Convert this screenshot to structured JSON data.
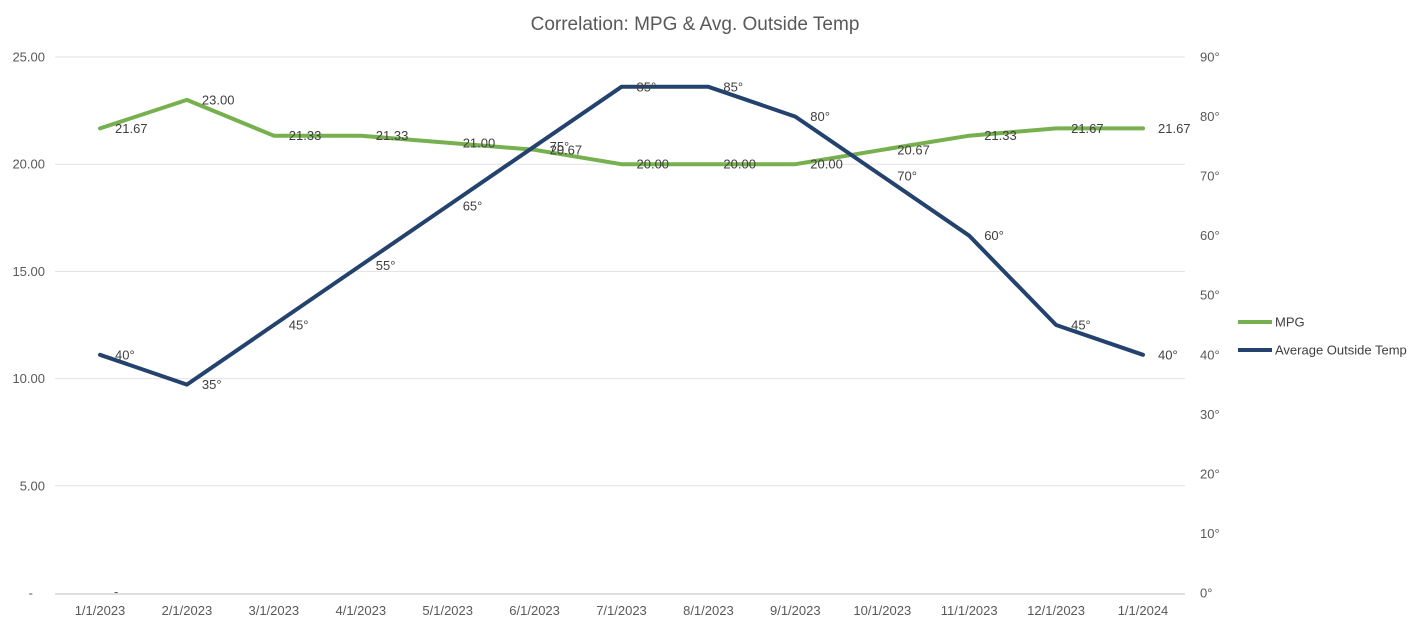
{
  "chart_data": {
    "type": "line",
    "title": "Correlation: MPG & Avg. Outside Temp",
    "x_categories": [
      "1/1/2023",
      "2/1/2023",
      "3/1/2023",
      "4/1/2023",
      "5/1/2023",
      "6/1/2023",
      "7/1/2023",
      "8/1/2023",
      "9/1/2023",
      "10/1/2023",
      "11/1/2023",
      "12/1/2023",
      "1/1/2024"
    ],
    "series": [
      {
        "name": "MPG",
        "axis": "left",
        "color": "#77B04F",
        "values": [
          21.67,
          23.0,
          21.33,
          21.33,
          21.0,
          20.67,
          20.0,
          20.0,
          20.0,
          20.67,
          21.33,
          21.67,
          21.67
        ],
        "point_labels": [
          "21.67",
          "23.00",
          "21.33",
          "21.33",
          "21.00",
          "20.67",
          "20.00",
          "20.00",
          "20.00",
          "20.67",
          "21.33",
          "21.67",
          "21.67"
        ]
      },
      {
        "name": "Average Outside Temp",
        "axis": "right",
        "color": "#24426E",
        "values": [
          40,
          35,
          45,
          55,
          65,
          75,
          85,
          85,
          80,
          70,
          60,
          45,
          40
        ],
        "point_labels": [
          "40°",
          "35°",
          "45°",
          "55°",
          "65°",
          "75°",
          "85°",
          "85°",
          "80°",
          "70°",
          "60°",
          "45°",
          "40°"
        ]
      }
    ],
    "left_axis": {
      "range": [
        0,
        25
      ],
      "ticks": [
        {
          "label": "25.00",
          "value": 25
        },
        {
          "label": "20.00",
          "value": 20
        },
        {
          "label": "15.00",
          "value": 15
        },
        {
          "label": "10.00",
          "value": 10
        },
        {
          "label": "5.00",
          "value": 5
        },
        {
          "label": "-",
          "value": 0
        }
      ]
    },
    "right_axis": {
      "range": [
        0,
        90
      ],
      "ticks": [
        {
          "label": "90°",
          "value": 90
        },
        {
          "label": "80°",
          "value": 80
        },
        {
          "label": "70°",
          "value": 70
        },
        {
          "label": "60°",
          "value": 60
        },
        {
          "label": "50°",
          "value": 50
        },
        {
          "label": "40°",
          "value": 40
        },
        {
          "label": "30°",
          "value": 30
        },
        {
          "label": "20°",
          "value": 20
        },
        {
          "label": "10°",
          "value": 10
        },
        {
          "label": "0°",
          "value": 0
        }
      ]
    },
    "legend_position": "right",
    "grid": true,
    "stray_zero_label": "-"
  },
  "colors": {
    "grid": "#E2E2E2",
    "axis_line": "#C9C9C9",
    "title_text": "#595959",
    "tick_text": "#595959",
    "data_label_text": "#3F3F3F",
    "legend_text": "#3F3F3F",
    "background": "#FFFFFF"
  }
}
